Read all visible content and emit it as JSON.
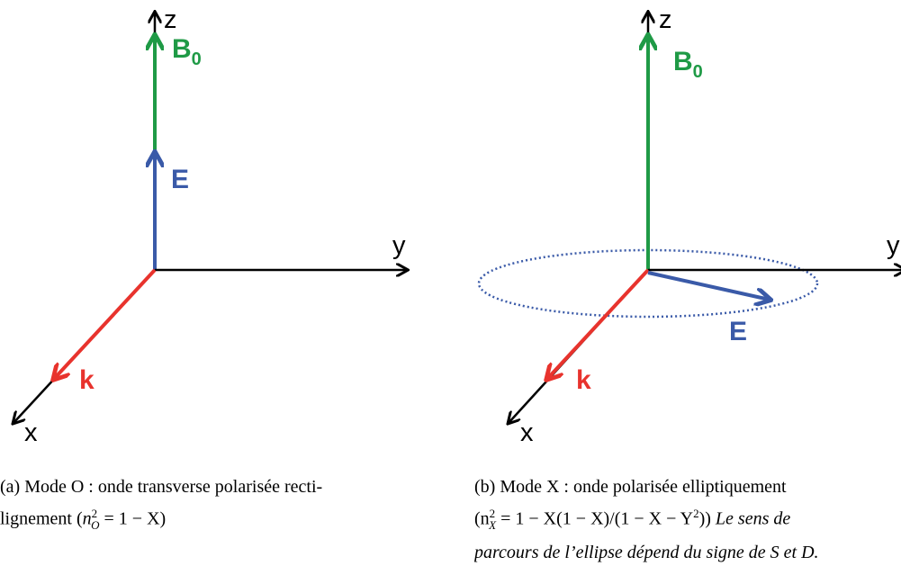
{
  "colors": {
    "axis": "#000000",
    "b0": "#1f9a46",
    "e": "#3a5aa8",
    "k": "#e8332d",
    "ellipse": "#3a5aa8"
  },
  "panel_a": {
    "axis_z": "z",
    "axis_y": "y",
    "axis_x": "x",
    "label_b0": "B",
    "label_b0_sub": "0",
    "label_e": "E",
    "label_k": "k",
    "caption_prefix": "(a) Mode O : onde transverse polarisée recti-",
    "caption_line2_start": "lignement (",
    "caption_formula": "n",
    "caption_sup": "2",
    "caption_sub": "O",
    "caption_rest": " = 1 − X",
    "caption_end": ")"
  },
  "panel_b": {
    "axis_z": "z",
    "axis_y": "y",
    "axis_x": "x",
    "label_b0": "B",
    "label_b0_sub": "0",
    "label_e": "E",
    "label_k": "k",
    "caption_line1": "(b) Mode X : onde polarisée elliptiquement",
    "caption_line2_math": "(n",
    "caption_line2_sup": "2",
    "caption_line2_sub": "X",
    "caption_line2_rest": " = 1 − X(1 − X)/(1 − X − Y",
    "caption_line2_sup2": "2",
    "caption_line2_close": "))",
    "caption_line2_italic": " Le sens de",
    "caption_line3": "parcours de l’ellipse dépend du signe de S et D."
  }
}
